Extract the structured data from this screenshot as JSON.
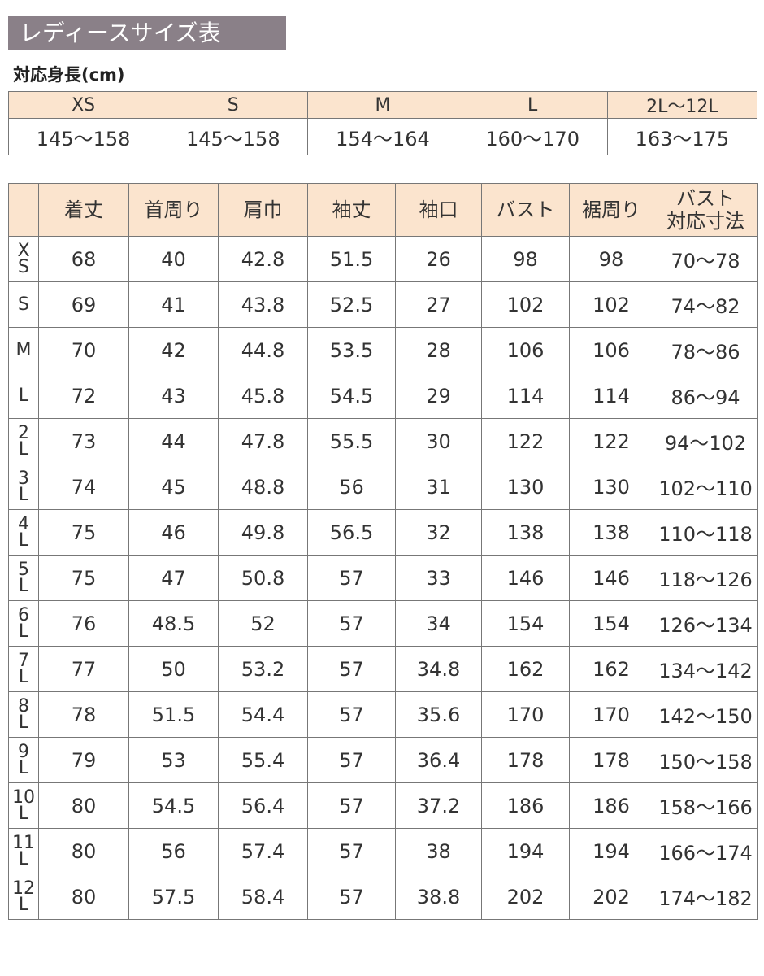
{
  "title": "レディースサイズ表",
  "height_table": {
    "label": "対応身長(cm)",
    "headers": [
      "XS",
      "S",
      "M",
      "L",
      "2L〜12L"
    ],
    "values": [
      "145〜158",
      "145〜158",
      "154〜164",
      "160〜170",
      "163〜175"
    ]
  },
  "size_table": {
    "headers": [
      "着丈",
      "首周り",
      "肩巾",
      "袖丈",
      "袖口",
      "バスト",
      "裾周り",
      "バスト\n対応寸法"
    ],
    "rows": [
      [
        "XS",
        68,
        40,
        42.8,
        51.5,
        26,
        98,
        98,
        "70〜78"
      ],
      [
        "S",
        69,
        41,
        43.8,
        52.5,
        27,
        102,
        102,
        "74〜82"
      ],
      [
        "M",
        70,
        42,
        44.8,
        53.5,
        28,
        106,
        106,
        "78〜86"
      ],
      [
        "L",
        72,
        43,
        45.8,
        54.5,
        29,
        114,
        114,
        "86〜94"
      ],
      [
        "2L",
        73,
        44,
        47.8,
        55.5,
        30,
        122,
        122,
        "94〜102"
      ],
      [
        "3L",
        74,
        45,
        48.8,
        56,
        31,
        130,
        130,
        "102〜110"
      ],
      [
        "4L",
        75,
        46,
        49.8,
        56.5,
        32,
        138,
        138,
        "110〜118"
      ],
      [
        "5L",
        75,
        47,
        50.8,
        57,
        33,
        146,
        146,
        "118〜126"
      ],
      [
        "6L",
        76,
        48.5,
        52,
        57,
        34,
        154,
        154,
        "126〜134"
      ],
      [
        "7L",
        77,
        50,
        53.2,
        57,
        34.8,
        162,
        162,
        "134〜142"
      ],
      [
        "8L",
        78,
        51.5,
        54.4,
        57,
        35.6,
        170,
        170,
        "142〜150"
      ],
      [
        "9L",
        79,
        53,
        55.4,
        57,
        36.4,
        178,
        178,
        "150〜158"
      ],
      [
        "10L",
        80,
        54.5,
        56.4,
        57,
        37.2,
        186,
        186,
        "158〜166"
      ],
      [
        "11L",
        80,
        56,
        57.4,
        57,
        38,
        194,
        194,
        "166〜174"
      ],
      [
        "12L",
        80,
        57.5,
        58.4,
        57,
        38.8,
        202,
        202,
        "174〜182"
      ]
    ]
  }
}
